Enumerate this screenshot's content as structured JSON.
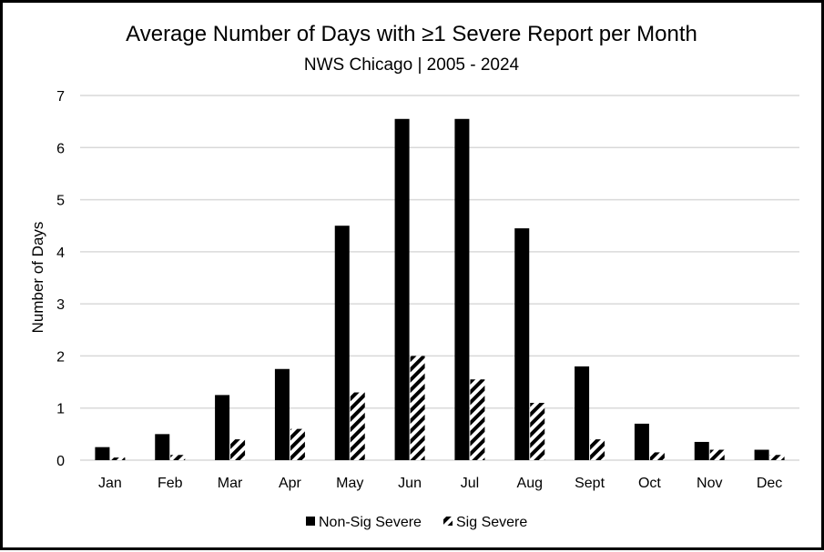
{
  "chart_data": {
    "type": "bar",
    "title": "Average Number of Days with ≥1 Severe Report per Month",
    "subtitle": "NWS Chicago | 2005 - 2024",
    "xlabel": "",
    "ylabel": "Number of Days",
    "ylim": [
      0,
      7
    ],
    "yticks": [
      "0",
      "1",
      "2",
      "3",
      "4",
      "5",
      "6",
      "7"
    ],
    "grid": true,
    "legend_position": "bottom",
    "categories": [
      "Jan",
      "Feb",
      "Mar",
      "Apr",
      "May",
      "Jun",
      "Jul",
      "Aug",
      "Sept",
      "Oct",
      "Nov",
      "Dec"
    ],
    "series": [
      {
        "name": "Non-Sig Severe",
        "color": "#000000",
        "pattern": "solid",
        "values": [
          0.25,
          0.5,
          1.25,
          1.75,
          4.5,
          6.55,
          6.55,
          4.45,
          1.8,
          0.7,
          0.35,
          0.2
        ]
      },
      {
        "name": "Sig Severe",
        "color": "#000000",
        "pattern": "diagonal-hatch",
        "values": [
          0.05,
          0.1,
          0.4,
          0.6,
          1.3,
          2.0,
          1.55,
          1.1,
          0.4,
          0.15,
          0.2,
          0.1
        ]
      }
    ]
  }
}
